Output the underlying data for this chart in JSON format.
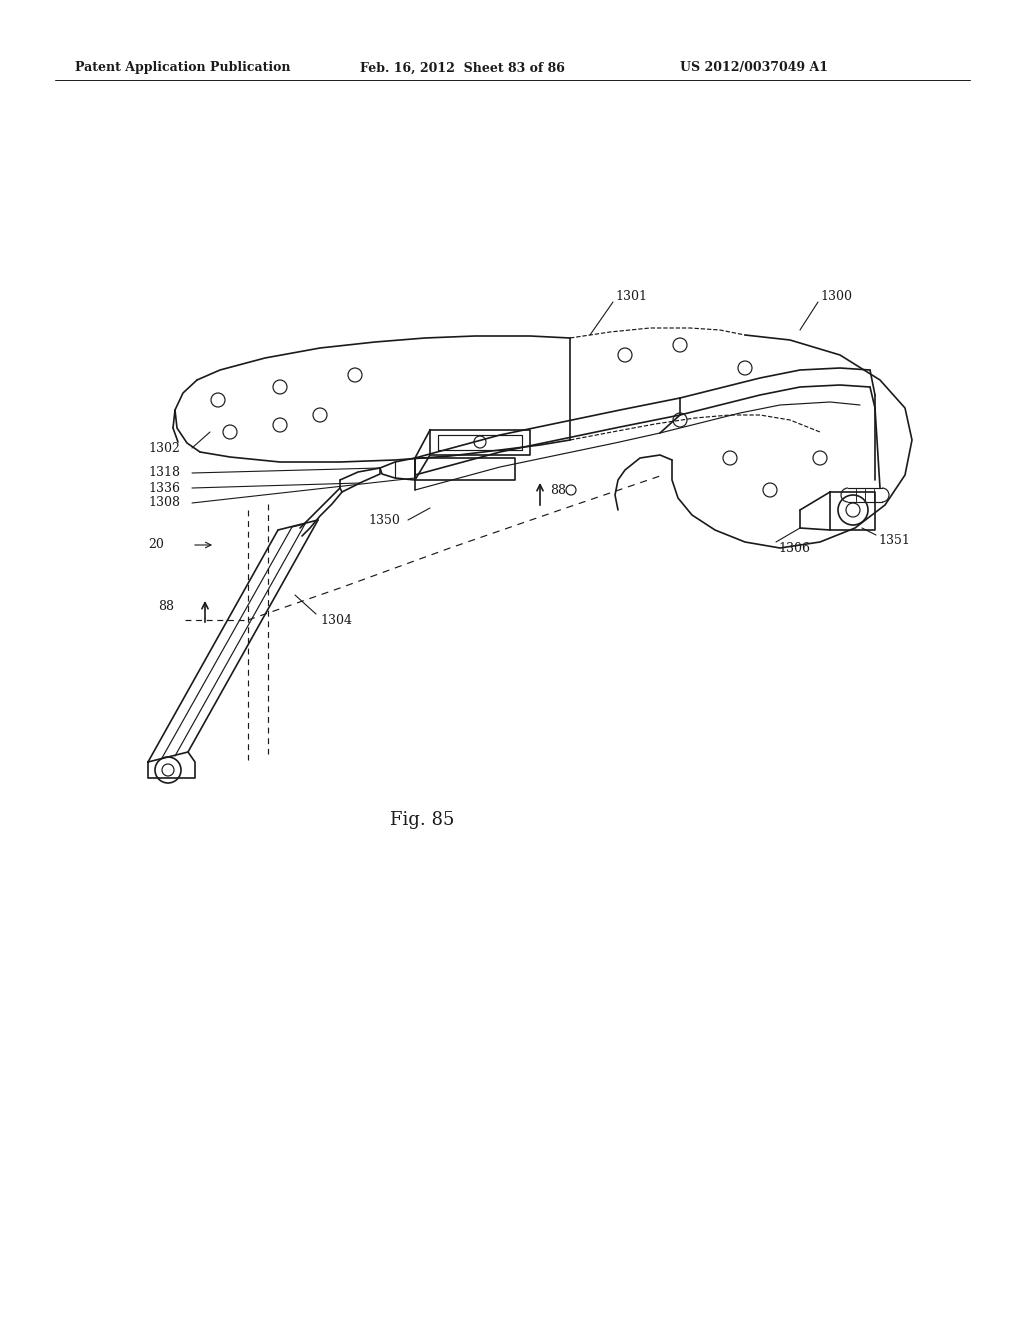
{
  "background_color": "#ffffff",
  "line_color": "#1a1a1a",
  "header_left": "Patent Application Publication",
  "header_mid": "Feb. 16, 2012  Sheet 83 of 86",
  "header_right": "US 2012/0037049 A1",
  "figure_label": "Fig. 85",
  "label_fontsize": 9,
  "fig_label_fontsize": 13
}
